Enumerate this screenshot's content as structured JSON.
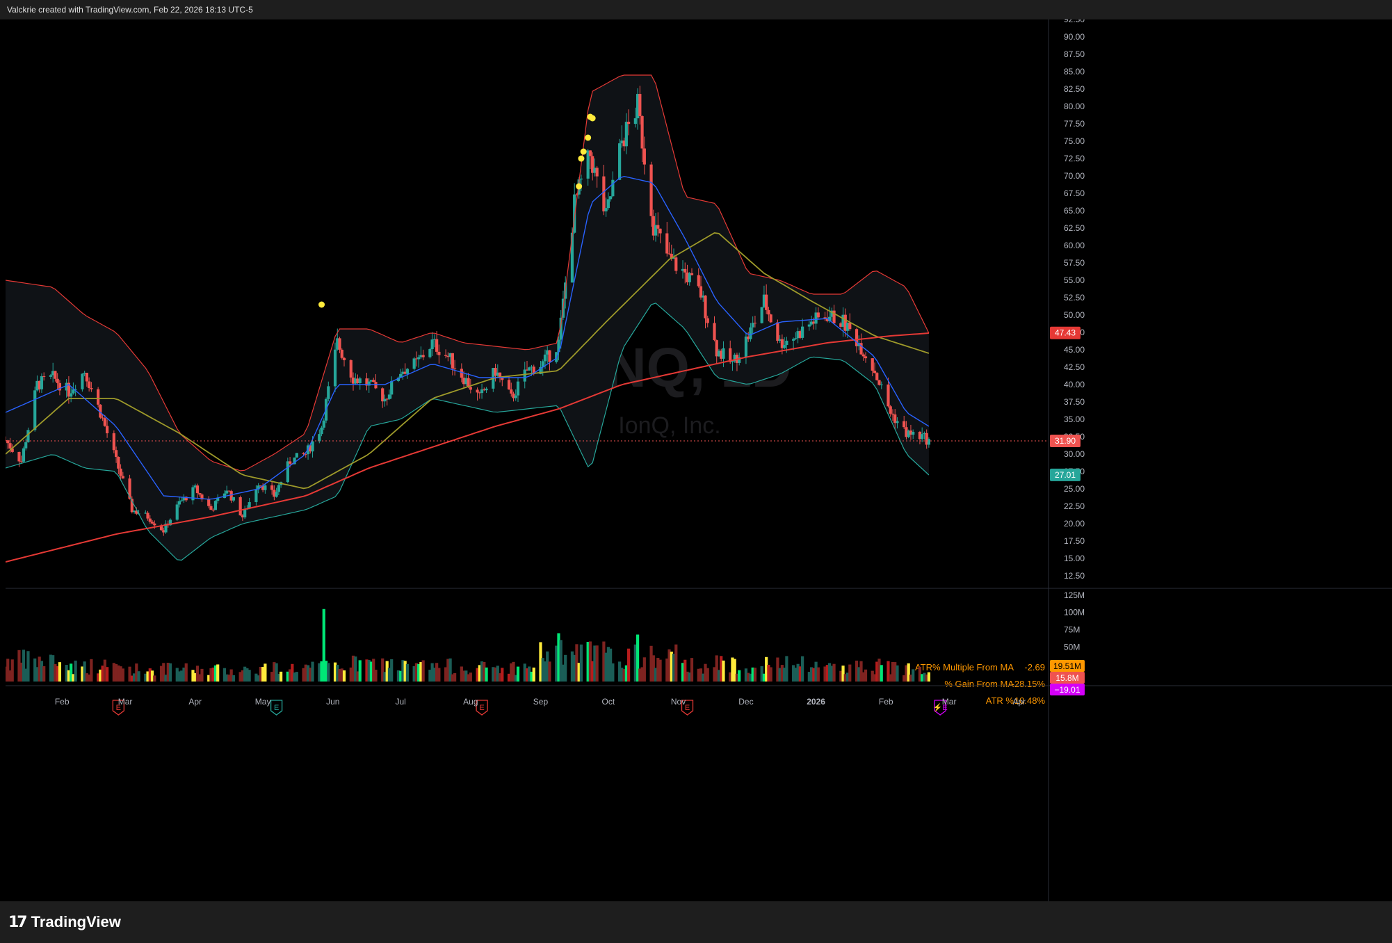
{
  "header": {
    "credit": "Valckrie created with TradingView.com, Feb 22, 2026 18:13 UTC-5"
  },
  "footer": {
    "brand": "TradingView"
  },
  "watermark": {
    "symbol": "IONQ, 1D",
    "name": "IonQ, Inc."
  },
  "colors": {
    "up": "#26a69a",
    "down": "#ef5350",
    "bb": "#e53935",
    "bbLower": "#26a69a",
    "ema": "#2962ff",
    "sma50": "#9e9a2a",
    "sma200": "#e53935",
    "dots": "#ffeb3b",
    "earnings": "#e53935",
    "earningsAlt": "#26a69a",
    "split": "#d500f9",
    "stats": "#ff9800"
  },
  "stats": [
    {
      "label": "ATR% Multiple From MA",
      "value": "-2.69"
    },
    {
      "label": "% Gain From MA",
      "value": "-28.15%"
    },
    {
      "label": "ATR %",
      "value": "10.48%"
    }
  ],
  "price_axis": {
    "ticks": [
      "92.50",
      "90.00",
      "87.50",
      "85.00",
      "82.50",
      "80.00",
      "77.50",
      "75.00",
      "72.50",
      "70.00",
      "67.50",
      "65.00",
      "62.50",
      "60.00",
      "57.50",
      "55.00",
      "52.50",
      "50.00",
      "47.50",
      "45.00",
      "42.50",
      "40.00",
      "37.50",
      "35.00",
      "32.50",
      "30.00",
      "27.50",
      "25.00",
      "22.50",
      "20.00",
      "17.50",
      "15.00",
      "12.50"
    ]
  },
  "price_badges": [
    {
      "value": "47.43",
      "color": "#e53935"
    },
    {
      "value": "31.90",
      "color": "#ef5350"
    },
    {
      "value": "27.01",
      "color": "#26a69a"
    }
  ],
  "volume_axis": {
    "ticks": [
      "125M",
      "100M",
      "75M",
      "50M"
    ]
  },
  "volume_badges": [
    {
      "value": "19.51M",
      "color": "#ff9800"
    },
    {
      "value": "15.8M",
      "color": "#ef5350"
    },
    {
      "value": "−19.01",
      "color": "#d500f9"
    }
  ],
  "time_axis": {
    "ticks": [
      "Feb",
      "Mar",
      "Apr",
      "May",
      "Jun",
      "Jul",
      "Aug",
      "Sep",
      "Oct",
      "Nov",
      "Dec",
      "2026",
      "Feb",
      "Mar",
      "Apr"
    ]
  },
  "event_markers": [
    {
      "date": "2025-02-26",
      "type": "earnings",
      "glyph": "E",
      "kind": "red"
    },
    {
      "date": "2025-05-07",
      "type": "earnings",
      "glyph": "E",
      "kind": "green"
    },
    {
      "date": "2025-08-06",
      "type": "earnings",
      "glyph": "E",
      "kind": "red"
    },
    {
      "date": "2025-11-05",
      "type": "earnings",
      "glyph": "E",
      "kind": "red"
    },
    {
      "date": "2026-02-25",
      "type": "earnings-upcoming",
      "glyph": "⚡E",
      "kind": "purple"
    }
  ],
  "chart_data": {
    "type": "candlestick",
    "symbol": "IONQ",
    "interval": "1D",
    "ylim": [
      12.5,
      92.5
    ],
    "x_range": [
      "2025-01-07",
      "2026-04-14"
    ],
    "last_close": 31.9,
    "monthly_ohlc": [
      {
        "month": "2025-01",
        "open": 40.0,
        "high": 45.5,
        "low": 27.8,
        "close": 39.8
      },
      {
        "month": "2025-02",
        "open": 39.8,
        "high": 43.6,
        "low": 27.5,
        "close": 28.5
      },
      {
        "month": "2025-03",
        "open": 28.5,
        "high": 29.0,
        "low": 17.9,
        "close": 24.0
      },
      {
        "month": "2025-04",
        "open": 24.0,
        "high": 28.0,
        "low": 20.0,
        "close": 26.5
      },
      {
        "month": "2025-05",
        "open": 26.5,
        "high": 48.5,
        "low": 25.5,
        "close": 43.0
      },
      {
        "month": "2025-06",
        "open": 43.0,
        "high": 45.0,
        "low": 36.0,
        "close": 42.0
      },
      {
        "month": "2025-07",
        "open": 42.0,
        "high": 47.0,
        "low": 38.0,
        "close": 41.0
      },
      {
        "month": "2025-08",
        "open": 41.0,
        "high": 46.0,
        "low": 35.5,
        "close": 43.5
      },
      {
        "month": "2025-09",
        "open": 43.0,
        "high": 78.5,
        "low": 42.0,
        "close": 68.0
      },
      {
        "month": "2025-10",
        "open": 68.0,
        "high": 84.6,
        "low": 55.0,
        "close": 58.0
      },
      {
        "month": "2025-11",
        "open": 58.0,
        "high": 60.0,
        "low": 38.5,
        "close": 46.0
      },
      {
        "month": "2025-12",
        "open": 46.0,
        "high": 55.0,
        "low": 44.0,
        "close": 48.0
      },
      {
        "month": "2026-01",
        "open": 48.0,
        "high": 54.0,
        "low": 40.0,
        "close": 41.0
      },
      {
        "month": "2026-02",
        "open": 41.0,
        "high": 42.0,
        "low": 30.5,
        "close": 31.9
      }
    ],
    "price_path": [
      [
        "2025-01-07",
        32.0
      ],
      [
        "2025-01-14",
        29.0
      ],
      [
        "2025-01-21",
        40.0
      ],
      [
        "2025-01-28",
        41.0
      ],
      [
        "2025-02-04",
        39.0
      ],
      [
        "2025-02-11",
        42.0
      ],
      [
        "2025-02-18",
        36.0
      ],
      [
        "2025-02-25",
        29.0
      ],
      [
        "2025-03-04",
        22.0
      ],
      [
        "2025-03-11",
        21.0
      ],
      [
        "2025-03-18",
        19.0
      ],
      [
        "2025-03-25",
        23.0
      ],
      [
        "2025-04-01",
        25.0
      ],
      [
        "2025-04-08",
        22.0
      ],
      [
        "2025-04-15",
        25.0
      ],
      [
        "2025-04-22",
        21.0
      ],
      [
        "2025-04-29",
        26.0
      ],
      [
        "2025-05-06",
        24.0
      ],
      [
        "2025-05-13",
        29.0
      ],
      [
        "2025-05-20",
        30.0
      ],
      [
        "2025-05-27",
        34.0
      ],
      [
        "2025-06-03",
        46.0
      ],
      [
        "2025-06-10",
        41.0
      ],
      [
        "2025-06-17",
        40.0
      ],
      [
        "2025-06-24",
        38.0
      ],
      [
        "2025-07-01",
        42.0
      ],
      [
        "2025-07-08",
        43.0
      ],
      [
        "2025-07-15",
        46.0
      ],
      [
        "2025-07-22",
        44.0
      ],
      [
        "2025-07-29",
        41.0
      ],
      [
        "2025-08-05",
        38.0
      ],
      [
        "2025-08-12",
        42.0
      ],
      [
        "2025-08-19",
        38.0
      ],
      [
        "2025-08-26",
        42.0
      ],
      [
        "2025-09-02",
        43.0
      ],
      [
        "2025-09-09",
        46.0
      ],
      [
        "2025-09-16",
        66.0
      ],
      [
        "2025-09-23",
        73.0
      ],
      [
        "2025-09-30",
        64.0
      ],
      [
        "2025-10-07",
        75.0
      ],
      [
        "2025-10-14",
        80.0
      ],
      [
        "2025-10-21",
        63.0
      ],
      [
        "2025-10-28",
        58.0
      ],
      [
        "2025-11-04",
        56.0
      ],
      [
        "2025-11-11",
        53.0
      ],
      [
        "2025-11-18",
        45.0
      ],
      [
        "2025-11-25",
        43.0
      ],
      [
        "2025-12-02",
        47.0
      ],
      [
        "2025-12-09",
        52.0
      ],
      [
        "2025-12-16",
        46.0
      ],
      [
        "2025-12-23",
        47.0
      ],
      [
        "2025-12-30",
        49.0
      ],
      [
        "2026-01-06",
        50.0
      ],
      [
        "2026-01-13",
        49.0
      ],
      [
        "2026-01-20",
        46.0
      ],
      [
        "2026-01-27",
        42.0
      ],
      [
        "2026-02-03",
        36.0
      ],
      [
        "2026-02-10",
        33.0
      ],
      [
        "2026-02-17",
        32.5
      ],
      [
        "2026-02-20",
        31.9
      ]
    ],
    "indicators": {
      "bollinger_upper": [
        [
          "2025-01-07",
          55.0
        ],
        [
          "2025-01-28",
          54.0
        ],
        [
          "2025-02-11",
          50.0
        ],
        [
          "2025-02-25",
          47.5
        ],
        [
          "2025-03-11",
          42.0
        ],
        [
          "2025-03-25",
          33.0
        ],
        [
          "2025-04-08",
          29.0
        ],
        [
          "2025-04-22",
          27.5
        ],
        [
          "2025-05-06",
          30.0
        ],
        [
          "2025-05-20",
          33.0
        ],
        [
          "2025-06-03",
          48.0
        ],
        [
          "2025-06-17",
          48.0
        ],
        [
          "2025-07-01",
          46.0
        ],
        [
          "2025-07-15",
          47.5
        ],
        [
          "2025-07-29",
          46.0
        ],
        [
          "2025-08-12",
          45.5
        ],
        [
          "2025-08-26",
          45.0
        ],
        [
          "2025-09-09",
          46.0
        ],
        [
          "2025-09-23",
          82.0
        ],
        [
          "2025-10-07",
          84.5
        ],
        [
          "2025-10-21",
          84.5
        ],
        [
          "2025-11-04",
          67.0
        ],
        [
          "2025-11-18",
          66.0
        ],
        [
          "2025-12-02",
          56.0
        ],
        [
          "2025-12-16",
          55.0
        ],
        [
          "2025-12-30",
          53.0
        ],
        [
          "2026-01-13",
          53.0
        ],
        [
          "2026-01-27",
          56.5
        ],
        [
          "2026-02-10",
          54.0
        ],
        [
          "2026-02-20",
          47.4
        ]
      ],
      "bollinger_lower": [
        [
          "2025-01-07",
          28.0
        ],
        [
          "2025-01-28",
          30.0
        ],
        [
          "2025-02-11",
          28.0
        ],
        [
          "2025-02-25",
          27.5
        ],
        [
          "2025-03-11",
          19.0
        ],
        [
          "2025-03-25",
          14.5
        ],
        [
          "2025-04-08",
          18.0
        ],
        [
          "2025-04-22",
          20.0
        ],
        [
          "2025-05-06",
          21.0
        ],
        [
          "2025-05-20",
          22.0
        ],
        [
          "2025-06-03",
          24.0
        ],
        [
          "2025-06-17",
          34.0
        ],
        [
          "2025-07-01",
          35.0
        ],
        [
          "2025-07-15",
          38.0
        ],
        [
          "2025-07-29",
          37.0
        ],
        [
          "2025-08-12",
          36.0
        ],
        [
          "2025-08-26",
          36.5
        ],
        [
          "2025-09-09",
          37.0
        ],
        [
          "2025-09-23",
          27.5
        ],
        [
          "2025-10-07",
          45.0
        ],
        [
          "2025-10-21",
          52.0
        ],
        [
          "2025-11-04",
          48.0
        ],
        [
          "2025-11-18",
          41.0
        ],
        [
          "2025-12-02",
          40.0
        ],
        [
          "2025-12-16",
          41.5
        ],
        [
          "2025-12-30",
          44.0
        ],
        [
          "2026-01-13",
          43.5
        ],
        [
          "2026-01-27",
          40.0
        ],
        [
          "2026-02-10",
          30.0
        ],
        [
          "2026-02-20",
          27.0
        ]
      ],
      "ema_fast": [
        [
          "2025-01-07",
          36.0
        ],
        [
          "2025-02-04",
          40.0
        ],
        [
          "2025-02-25",
          34.0
        ],
        [
          "2025-03-18",
          24.0
        ],
        [
          "2025-04-08",
          23.5
        ],
        [
          "2025-04-29",
          25.0
        ],
        [
          "2025-05-20",
          30.0
        ],
        [
          "2025-06-03",
          40.0
        ],
        [
          "2025-06-24",
          40.0
        ],
        [
          "2025-07-15",
          43.0
        ],
        [
          "2025-08-05",
          41.0
        ],
        [
          "2025-08-26",
          41.0
        ],
        [
          "2025-09-09",
          44.0
        ],
        [
          "2025-09-23",
          66.0
        ],
        [
          "2025-10-07",
          70.0
        ],
        [
          "2025-10-21",
          69.0
        ],
        [
          "2025-11-04",
          61.0
        ],
        [
          "2025-11-18",
          52.0
        ],
        [
          "2025-12-02",
          47.0
        ],
        [
          "2025-12-16",
          49.0
        ],
        [
          "2026-01-06",
          49.5
        ],
        [
          "2026-01-27",
          44.0
        ],
        [
          "2026-02-10",
          36.0
        ],
        [
          "2026-02-20",
          34.0
        ]
      ],
      "sma_50": [
        [
          "2025-01-07",
          30.0
        ],
        [
          "2025-02-04",
          38.0
        ],
        [
          "2025-02-25",
          38.0
        ],
        [
          "2025-03-25",
          33.0
        ],
        [
          "2025-04-22",
          27.0
        ],
        [
          "2025-05-20",
          25.0
        ],
        [
          "2025-06-17",
          30.0
        ],
        [
          "2025-07-15",
          38.0
        ],
        [
          "2025-08-12",
          41.0
        ],
        [
          "2025-09-09",
          42.0
        ],
        [
          "2025-09-30",
          49.0
        ],
        [
          "2025-10-28",
          58.0
        ],
        [
          "2025-11-18",
          62.0
        ],
        [
          "2025-12-09",
          56.0
        ],
        [
          "2025-12-30",
          52.0
        ],
        [
          "2026-01-27",
          47.0
        ],
        [
          "2026-02-20",
          44.5
        ]
      ],
      "sma_200": [
        [
          "2025-01-07",
          14.5
        ],
        [
          "2025-02-25",
          18.5
        ],
        [
          "2025-04-08",
          21.0
        ],
        [
          "2025-05-20",
          24.0
        ],
        [
          "2025-06-17",
          28.0
        ],
        [
          "2025-07-15",
          31.0
        ],
        [
          "2025-08-12",
          34.0
        ],
        [
          "2025-09-09",
          36.5
        ],
        [
          "2025-10-07",
          40.0
        ],
        [
          "2025-11-04",
          42.0
        ],
        [
          "2025-12-02",
          44.0
        ],
        [
          "2026-01-06",
          46.0
        ],
        [
          "2026-02-03",
          47.0
        ],
        [
          "2026-02-20",
          47.4
        ]
      ]
    },
    "signal_dots": [
      [
        "2025-05-27",
        51.5
      ],
      [
        "2025-09-18",
        68.5
      ],
      [
        "2025-09-19",
        72.5
      ],
      [
        "2025-09-20",
        73.5
      ],
      [
        "2025-09-22",
        75.5
      ],
      [
        "2025-09-23",
        78.5
      ],
      [
        "2025-09-24",
        78.3
      ]
    ],
    "volume": {
      "unit": "M",
      "ylim": [
        0,
        137
      ],
      "monthly_avg": [
        [
          "2025-01",
          30
        ],
        [
          "2025-02",
          22
        ],
        [
          "2025-03",
          18
        ],
        [
          "2025-04",
          17
        ],
        [
          "2025-05",
          20
        ],
        [
          "2025-06",
          25
        ],
        [
          "2025-07",
          22
        ],
        [
          "2025-08",
          20
        ],
        [
          "2025-09",
          40
        ],
        [
          "2025-10",
          35
        ],
        [
          "2025-11",
          25
        ],
        [
          "2025-12",
          24
        ],
        [
          "2026-01",
          22
        ],
        [
          "2026-02",
          20
        ]
      ],
      "spikes": [
        [
          "2025-05-28",
          105
        ],
        [
          "2025-05-29",
          30
        ],
        [
          "2025-09-09",
          70
        ],
        [
          "2025-10-14",
          68
        ]
      ]
    }
  }
}
